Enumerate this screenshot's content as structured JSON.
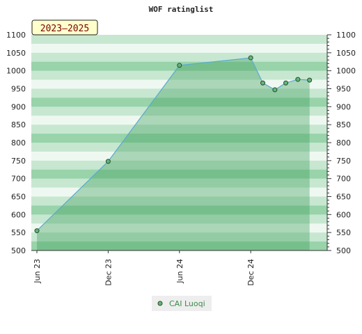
{
  "chart_data": {
    "type": "area",
    "title": "WOF ratinglist",
    "period_label": "2023–2025",
    "x_tick_labels": [
      "Jun 23",
      "Dec 23",
      "Jun 24",
      "Dec 24"
    ],
    "x_tick_dates": [
      "2023-06-01",
      "2023-12-01",
      "2024-06-01",
      "2024-12-01"
    ],
    "xlim": [
      "2023-06-01",
      "2025-06-01"
    ],
    "ylim": [
      500,
      1100
    ],
    "y_ticks": [
      500,
      550,
      600,
      650,
      700,
      750,
      800,
      850,
      900,
      950,
      1000,
      1050,
      1100
    ],
    "grid": false,
    "legend_position": "bottom-center",
    "series": [
      {
        "name": "CAI Luoqi",
        "x": [
          "2023-06-01",
          "2023-12-01",
          "2024-06-01",
          "2024-12-01",
          "2025-01-01",
          "2025-02-01",
          "2025-03-01",
          "2025-04-01",
          "2025-05-01"
        ],
        "values": [
          555,
          748,
          1015,
          1036,
          966,
          947,
          966,
          976,
          974
        ]
      }
    ]
  },
  "colors": {
    "band_light": "#eef8f1",
    "band_mid": "#c7e7d1",
    "band_dark": "#98d3aa",
    "area_fill": "#3f9f5c",
    "line": "#5aa9d0",
    "marker_fill": "#5fb77a",
    "marker_stroke": "#2a4a2a",
    "period_bg": "#ffffcc"
  }
}
